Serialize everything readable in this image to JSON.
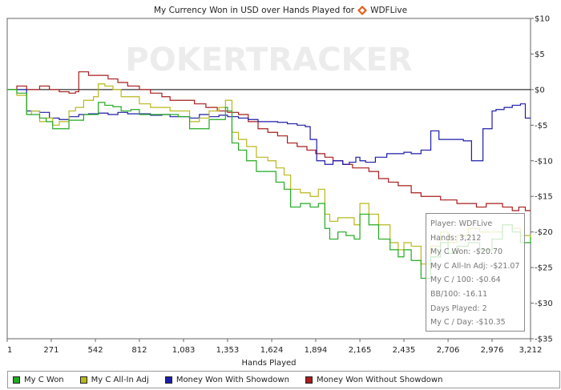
{
  "title": {
    "prefix": "My Currency Won in USD over Hands Played for",
    "player": "WDFLive"
  },
  "watermark": "POKERTRACKER",
  "tooltip": {
    "lines": [
      "Player: WDFLive",
      "Hands: 3,212",
      "My C Won: -$20.70",
      "My C All-In Adj: -$21.07",
      "My C / 100: -$0.64",
      "BB/100: -16.11",
      "Days Played: 2",
      "My C / Day: -$10.35"
    ]
  },
  "colors": {
    "my_c_won": "#22aa22",
    "all_in_adj": "#b8b81c",
    "showdown": "#1c1ca8",
    "no_showdown": "#a81c1c",
    "zero_line": "#000000",
    "frame": "#666666"
  },
  "chart_data": {
    "type": "line",
    "xlabel": "Hands Played",
    "ylabel": "",
    "x_ticks": [
      1,
      271,
      542,
      812,
      1083,
      1353,
      1624,
      1894,
      2165,
      2435,
      2706,
      2976,
      3212
    ],
    "x_tick_labels": [
      "1",
      "271",
      "542",
      "812",
      "1,083",
      "1,353",
      "1,624",
      "1,894",
      "2,165",
      "2,435",
      "2,706",
      "2,976",
      "3,212"
    ],
    "y_ticks": [
      10,
      5,
      0,
      -5,
      -10,
      -15,
      -20,
      -25,
      -30,
      -35
    ],
    "y_tick_labels": [
      "$10",
      "$5",
      "$0",
      "-$5",
      "-$10",
      "-$15",
      "-$20",
      "-$25",
      "-$30",
      "-$35"
    ],
    "xlim": [
      1,
      3212
    ],
    "ylim": [
      -35,
      10
    ],
    "grid": false,
    "legend_position": "bottom",
    "series": [
      {
        "name": "My C Won",
        "x": [
          1,
          60,
          120,
          150,
          200,
          240,
          280,
          320,
          380,
          420,
          470,
          530,
          560,
          600,
          650,
          700,
          760,
          812,
          880,
          950,
          1000,
          1050,
          1080,
          1120,
          1180,
          1240,
          1300,
          1340,
          1353,
          1380,
          1420,
          1470,
          1530,
          1600,
          1650,
          1700,
          1740,
          1800,
          1860,
          1910,
          1950,
          1980,
          2030,
          2080,
          2130,
          2165,
          2220,
          2280,
          2350,
          2400,
          2435,
          2480,
          2540,
          2600,
          2660,
          2706,
          2760,
          2830,
          2900,
          2976,
          3040,
          3100,
          3150,
          3212
        ],
        "y": [
          0,
          -0.5,
          -3.5,
          -3.5,
          -4,
          -4.5,
          -5.5,
          -5.5,
          -4.3,
          -4.3,
          -3.5,
          -3.5,
          -1.8,
          -2.2,
          -2.4,
          -3.0,
          -2.8,
          -3.5,
          -3.5,
          -3.5,
          -3.5,
          -3.8,
          -3.8,
          -5.5,
          -5.5,
          -4.2,
          -4.2,
          -2.5,
          -3.0,
          -7.5,
          -8.5,
          -10.0,
          -11.5,
          -11.5,
          -13.0,
          -14.0,
          -16.5,
          -16.0,
          -16.5,
          -16.0,
          -19.5,
          -21.0,
          -20.0,
          -20.5,
          -21.0,
          -17.5,
          -19.0,
          -21.0,
          -22.5,
          -23.5,
          -22.5,
          -24.0,
          -26.5,
          -23.5,
          -21.5,
          -23.0,
          -22.0,
          -21.5,
          -22.5,
          -21.0,
          -19.0,
          -20.0,
          -21.5,
          -20.7
        ]
      },
      {
        "name": "My C All-In Adj",
        "x": [
          1,
          60,
          120,
          150,
          200,
          240,
          280,
          320,
          380,
          420,
          470,
          530,
          560,
          600,
          650,
          700,
          760,
          812,
          880,
          950,
          1000,
          1050,
          1080,
          1120,
          1180,
          1240,
          1300,
          1340,
          1353,
          1380,
          1420,
          1470,
          1530,
          1600,
          1650,
          1700,
          1740,
          1800,
          1860,
          1910,
          1950,
          1980,
          2030,
          2080,
          2130,
          2165,
          2220,
          2280,
          2350,
          2400,
          2435,
          2480,
          2540,
          2600,
          2660,
          2706,
          2760,
          2830,
          2900,
          2976,
          3040,
          3100,
          3150,
          3212
        ],
        "y": [
          0,
          -0.8,
          -3.5,
          -3.0,
          -4.5,
          -4.0,
          -5.0,
          -4.5,
          -3.0,
          -2.5,
          -1.5,
          -1.0,
          0.8,
          0.5,
          0.0,
          -1.0,
          -1.0,
          -2.0,
          -2.5,
          -2.5,
          -3.0,
          -3.0,
          -3.0,
          -4.5,
          -4.0,
          -3.0,
          -2.5,
          -1.5,
          -1.5,
          -6.0,
          -7.0,
          -8.0,
          -9.5,
          -10.0,
          -11.0,
          -12.0,
          -14.0,
          -14.5,
          -15.0,
          -14.0,
          -17.5,
          -18.5,
          -18.0,
          -18.0,
          -19.0,
          -16.0,
          -17.5,
          -19.0,
          -21.5,
          -22.5,
          -21.5,
          -22.0,
          -24.5,
          -22.0,
          -20.0,
          -21.5,
          -20.5,
          -19.5,
          -20.0,
          -20.0,
          -19.0,
          -19.5,
          -20.5,
          -21.07
        ]
      },
      {
        "name": "Money Won With Showdown",
        "x": [
          1,
          60,
          120,
          200,
          260,
          320,
          380,
          440,
          500,
          560,
          620,
          680,
          740,
          812,
          880,
          950,
          1000,
          1083,
          1120,
          1180,
          1240,
          1300,
          1353,
          1420,
          1480,
          1540,
          1600,
          1660,
          1720,
          1780,
          1830,
          1860,
          1900,
          1950,
          2000,
          2060,
          2100,
          2140,
          2165,
          2200,
          2260,
          2330,
          2380,
          2435,
          2480,
          2540,
          2600,
          2650,
          2706,
          2760,
          2800,
          2850,
          2890,
          2920,
          2950,
          2976,
          3000,
          3050,
          3100,
          3150,
          3180,
          3212
        ],
        "y": [
          0,
          0,
          -3.0,
          -3.2,
          -4.0,
          -4.2,
          -3.8,
          -3.5,
          -3.4,
          -3.3,
          -3.5,
          -3.2,
          -3.4,
          -3.4,
          -3.6,
          -3.5,
          -3.8,
          -3.8,
          -4.0,
          -3.5,
          -3.8,
          -3.6,
          -3.8,
          -4.0,
          -4.2,
          -4.5,
          -4.5,
          -4.6,
          -4.8,
          -5.0,
          -5.2,
          -7.0,
          -10.0,
          -10.5,
          -10.0,
          -10.5,
          -10.2,
          -9.5,
          -10.0,
          -10.2,
          -9.5,
          -9.0,
          -9.0,
          -8.8,
          -9.0,
          -8.5,
          -5.8,
          -7.0,
          -7.0,
          -7.0,
          -7.2,
          -10.0,
          -10.0,
          -5.5,
          -5.5,
          -3.0,
          -2.8,
          -2.5,
          -2.2,
          -2.0,
          -4.0,
          -4.0
        ]
      },
      {
        "name": "Money Won Without Showdown",
        "x": [
          1,
          60,
          120,
          200,
          260,
          320,
          380,
          420,
          440,
          500,
          560,
          620,
          680,
          740,
          812,
          880,
          950,
          1000,
          1083,
          1150,
          1220,
          1290,
          1353,
          1420,
          1480,
          1540,
          1600,
          1660,
          1720,
          1780,
          1840,
          1894,
          1950,
          2000,
          2060,
          2120,
          2165,
          2220,
          2280,
          2340,
          2400,
          2435,
          2480,
          2540,
          2600,
          2660,
          2706,
          2760,
          2820,
          2880,
          2940,
          2976,
          3040,
          3100,
          3140,
          3180,
          3212
        ],
        "y": [
          0,
          0.5,
          0.0,
          0.5,
          0.0,
          -0.3,
          -0.5,
          -0.3,
          2.5,
          2.0,
          2.0,
          1.5,
          1.0,
          0.5,
          0.0,
          -0.5,
          -1.0,
          -1.5,
          -1.5,
          -2.0,
          -2.5,
          -3.0,
          -3.2,
          -3.5,
          -4.5,
          -5.5,
          -6.0,
          -6.5,
          -7.5,
          -8.0,
          -8.5,
          -9.0,
          -9.5,
          -10.0,
          -10.5,
          -11.0,
          -11.0,
          -11.5,
          -12.5,
          -13.0,
          -13.5,
          -13.5,
          -14.5,
          -15.0,
          -15.0,
          -15.5,
          -15.5,
          -16.0,
          -16.0,
          -16.5,
          -16.0,
          -16.0,
          -16.5,
          -17.0,
          -16.5,
          -17.0,
          -17.0
        ]
      }
    ]
  },
  "legend": {
    "items": [
      {
        "label": "My C Won",
        "color": "#22aa22"
      },
      {
        "label": "My C All-In Adj",
        "color": "#b8b81c"
      },
      {
        "label": "Money Won With Showdown",
        "color": "#1c1ca8"
      },
      {
        "label": "Money Won Without Showdown",
        "color": "#a81c1c"
      }
    ]
  }
}
